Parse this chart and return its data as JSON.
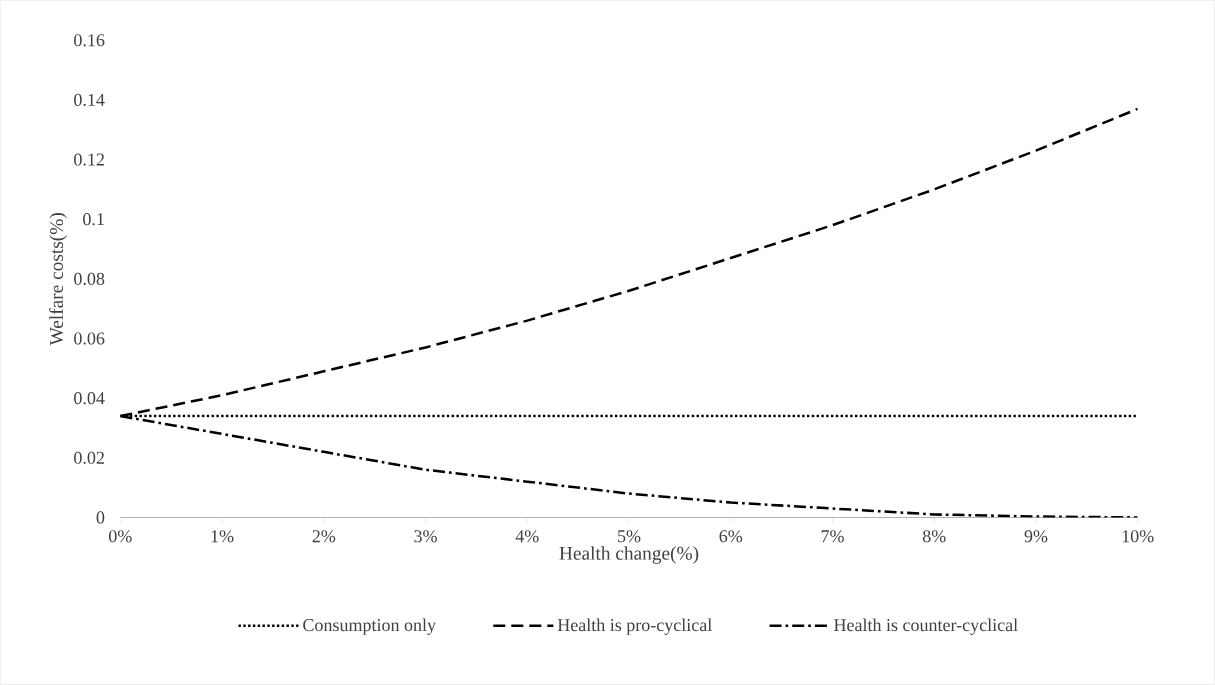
{
  "chart_data": {
    "type": "line",
    "xlabel": "Health change(%)",
    "ylabel": "Welfare costs(%)",
    "x": [
      0,
      1,
      2,
      3,
      4,
      5,
      6,
      7,
      8,
      9,
      10
    ],
    "series": [
      {
        "name": "Consumption only",
        "color": "#000000",
        "line_style": "dotted",
        "values": [
          0.034,
          0.034,
          0.034,
          0.034,
          0.034,
          0.034,
          0.034,
          0.034,
          0.034,
          0.034,
          0.034
        ]
      },
      {
        "name": "Health is pro-cyclical",
        "color": "#000000",
        "line_style": "dashed",
        "values": [
          0.034,
          0.041,
          0.049,
          0.057,
          0.066,
          0.076,
          0.087,
          0.098,
          0.11,
          0.123,
          0.137
        ]
      },
      {
        "name": "Health is counter-cyclical",
        "color": "#000000",
        "line_style": "dashdot",
        "values": [
          0.034,
          0.028,
          0.022,
          0.016,
          0.012,
          0.008,
          0.005,
          0.003,
          0.001,
          0.0003,
          0
        ]
      }
    ],
    "xlim": [
      0,
      10
    ],
    "ylim": [
      0,
      0.16
    ],
    "xticks": [
      {
        "value": 0,
        "label": "0%"
      },
      {
        "value": 1,
        "label": "1%"
      },
      {
        "value": 2,
        "label": "2%"
      },
      {
        "value": 3,
        "label": "3%"
      },
      {
        "value": 4,
        "label": "4%"
      },
      {
        "value": 5,
        "label": "5%"
      },
      {
        "value": 6,
        "label": "6%"
      },
      {
        "value": 7,
        "label": "7%"
      },
      {
        "value": 8,
        "label": "8%"
      },
      {
        "value": 9,
        "label": "9%"
      },
      {
        "value": 10,
        "label": "10%"
      }
    ],
    "yticks": [
      0,
      0.02,
      0.04,
      0.06,
      0.08,
      0.1,
      0.12,
      0.14,
      0.16
    ],
    "grid": false,
    "legend": "bottom",
    "marker": "none"
  }
}
